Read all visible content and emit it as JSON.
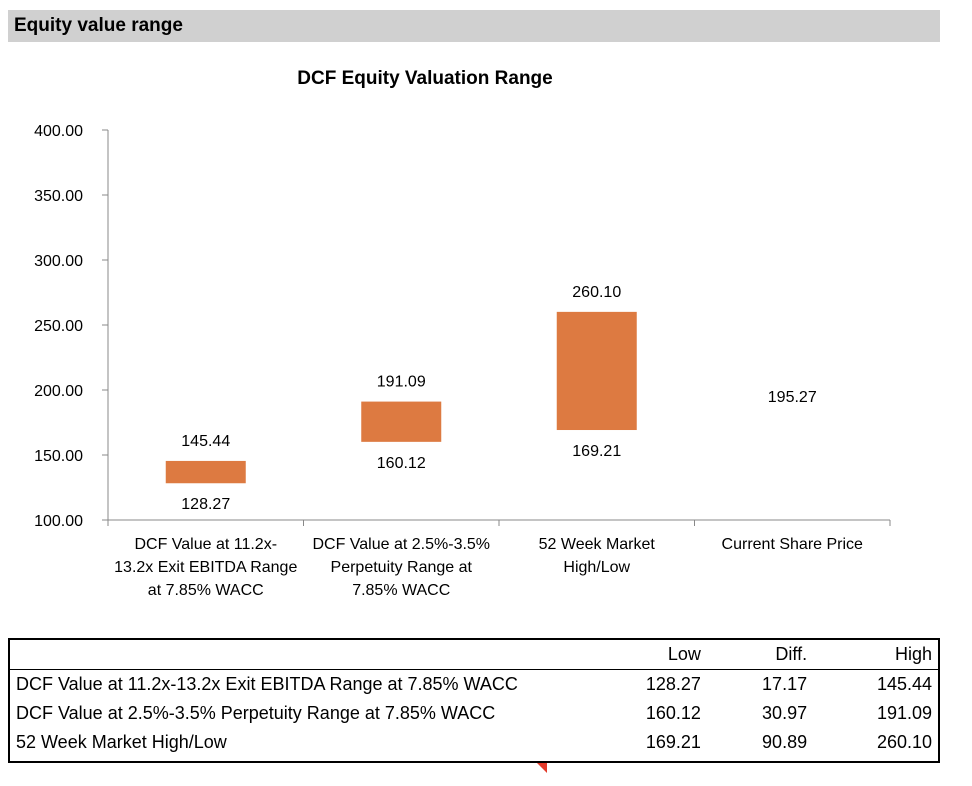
{
  "section_header": "Equity value range",
  "chart_data": {
    "type": "bar",
    "title": "DCF Equity Valuation Range",
    "categories": [
      "DCF Value at 11.2x-13.2x Exit EBITDA Range at 7.85% WACC",
      "DCF Value at 2.5%-3.5% Perpetuity Range at 7.85% WACC",
      "52 Week Market High/Low",
      "Current Share Price"
    ],
    "category_lines": [
      [
        "DCF Value at 11.2x-",
        "13.2x Exit EBITDA Range",
        "at 7.85% WACC"
      ],
      [
        "DCF Value at 2.5%-3.5%",
        "Perpetuity Range at",
        "7.85% WACC"
      ],
      [
        "52 Week Market",
        "High/Low"
      ],
      [
        "Current Share Price"
      ]
    ],
    "low": [
      128.27,
      160.12,
      169.21,
      null
    ],
    "high": [
      145.44,
      191.09,
      260.1,
      null
    ],
    "low_labels": [
      "128.27",
      "160.12",
      "169.21",
      ""
    ],
    "high_labels": [
      "145.44",
      "191.09",
      "260.10",
      ""
    ],
    "point_value": [
      null,
      null,
      null,
      195.27
    ],
    "point_labels": [
      "",
      "",
      "",
      "195.27"
    ],
    "ylim": [
      100,
      400
    ],
    "yticks": [
      "100.00",
      "150.00",
      "200.00",
      "250.00",
      "300.00",
      "350.00",
      "400.00"
    ],
    "bar_color": "#dd7a41",
    "grid": false,
    "legend": "none"
  },
  "table": {
    "headers": [
      "",
      "Low",
      "Diff.",
      "High"
    ],
    "rows": [
      [
        "DCF Value at 11.2x-13.2x Exit EBITDA Range at 7.85% WACC",
        "128.27",
        "17.17",
        "145.44"
      ],
      [
        "DCF Value at 2.5%-3.5% Perpetuity Range at 7.85% WACC",
        "160.12",
        "30.97",
        "191.09"
      ],
      [
        "52 Week Market High/Low",
        "169.21",
        "90.89",
        "260.10"
      ]
    ]
  }
}
